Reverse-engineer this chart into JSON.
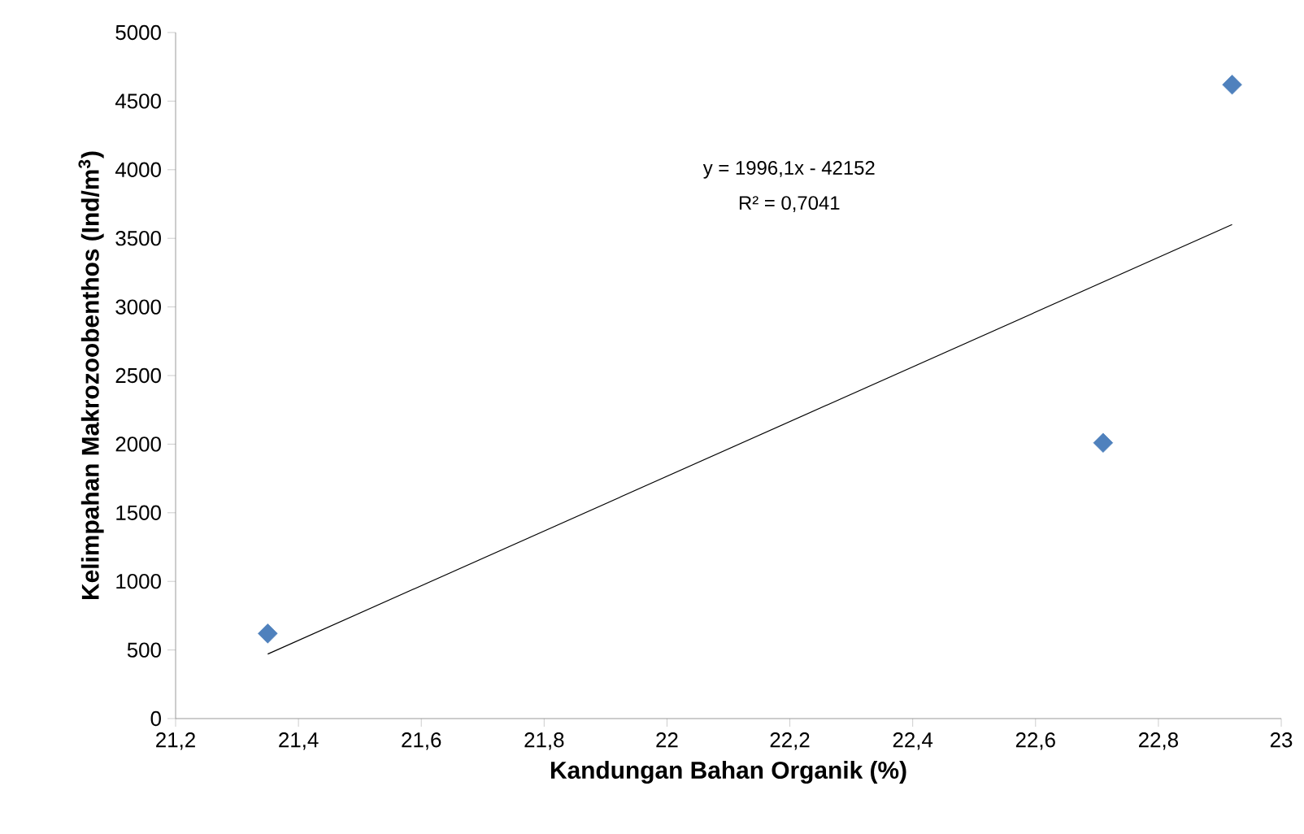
{
  "chart_data": {
    "type": "scatter",
    "xlabel": "Kandungan Bahan Organik (%)",
    "ylabel": "Kelimpahan Makrozoobenthos (Ind/m$^{3}$)",
    "series": [
      {
        "color": "#4f81bd",
        "x": [
          21.35,
          22.71,
          22.92
        ],
        "values": [
          620,
          2010,
          4620
        ]
      },
      {
        "type": "line",
        "color": "#000000",
        "line_style": "solid",
        "marker": "none",
        "x": [
          21.35,
          22.92
        ],
        "values": [
          470,
          3600
        ]
      }
    ],
    "annotations": [
      "y = 1996,1x - 42152",
      "R² = 0,7041"
    ],
    "xlim": [
      21.2,
      23
    ],
    "ylim": [
      0,
      5000
    ],
    "xticks": [
      {
        "value": 21.2,
        "label": "21,2"
      },
      {
        "value": 21.4,
        "label": "21,4"
      },
      {
        "value": 21.6,
        "label": "21,6"
      },
      {
        "value": 21.8,
        "label": "21,8"
      },
      22,
      {
        "value": 22.2,
        "label": "22,2"
      },
      {
        "value": 22.4,
        "label": "22,4"
      },
      {
        "value": 22.6,
        "label": "22,6"
      },
      {
        "value": 22.8,
        "label": "22,8"
      },
      23
    ],
    "yticks": [
      0,
      500,
      1000,
      1500,
      2000,
      2500,
      3000,
      3500,
      4000,
      4500,
      5000
    ],
    "marker": "diamond"
  }
}
